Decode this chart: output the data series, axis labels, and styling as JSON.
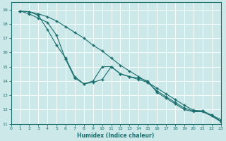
{
  "xlabel": "Humidex (Indice chaleur)",
  "bg_color": "#cce8e8",
  "grid_color": "#ffffff",
  "line_color": "#1a6e6e",
  "xlim": [
    0,
    23
  ],
  "ylim": [
    11,
    19.5
  ],
  "xticks": [
    0,
    1,
    2,
    3,
    4,
    5,
    6,
    7,
    8,
    9,
    10,
    11,
    12,
    13,
    14,
    15,
    16,
    17,
    18,
    19,
    20,
    21,
    22,
    23
  ],
  "yticks": [
    11,
    12,
    13,
    14,
    15,
    16,
    17,
    18,
    19
  ],
  "line1_x": [
    1,
    2,
    3,
    4,
    5,
    6,
    7,
    8,
    9,
    10,
    11,
    12,
    13,
    14,
    15,
    16,
    17,
    18,
    19,
    20,
    21,
    22,
    23
  ],
  "line1_y": [
    18.9,
    18.85,
    18.7,
    18.5,
    18.2,
    17.8,
    17.4,
    17.0,
    16.5,
    16.1,
    15.6,
    15.1,
    14.7,
    14.3,
    13.9,
    13.5,
    13.1,
    12.7,
    12.3,
    11.95,
    11.9,
    11.6,
    11.3
  ],
  "line2_x": [
    1,
    2,
    3,
    4,
    5,
    6,
    7,
    8,
    9,
    10,
    11,
    12,
    13,
    14,
    15,
    16,
    17,
    18,
    19,
    20,
    21,
    22,
    23
  ],
  "line2_y": [
    18.9,
    18.85,
    18.6,
    17.6,
    16.5,
    15.6,
    14.3,
    13.8,
    14.0,
    15.0,
    15.0,
    14.5,
    14.3,
    14.1,
    13.9,
    13.3,
    12.9,
    12.5,
    12.1,
    11.9,
    11.9,
    11.6,
    11.2
  ],
  "line3_x": [
    1,
    2,
    3,
    4,
    5,
    6,
    7,
    8,
    9,
    10,
    11,
    12,
    13,
    14,
    15,
    16,
    17,
    18,
    19,
    20,
    21,
    22,
    23
  ],
  "line3_y": [
    18.9,
    18.7,
    18.4,
    18.1,
    17.2,
    15.5,
    14.2,
    13.8,
    13.9,
    14.1,
    15.0,
    14.5,
    14.3,
    14.2,
    14.0,
    13.2,
    12.8,
    12.4,
    12.0,
    11.85,
    11.85,
    11.55,
    11.15
  ]
}
